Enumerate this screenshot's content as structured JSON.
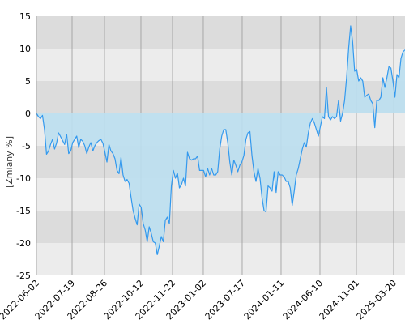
{
  "chart_data": {
    "type": "area",
    "xlabel": "",
    "ylabel": "[Zmiany %]",
    "ylim": [
      -25,
      15
    ],
    "y_ticks": [
      "15",
      "10",
      "5",
      "0",
      "-5",
      "-10",
      "-15",
      "-20",
      "-25"
    ],
    "x_ticks": [
      "2022-06-02",
      "2022-07-19",
      "2022-08-26",
      "2022-10-12",
      "2022-11-22",
      "2023-01-02",
      "2023-07-17",
      "2024-01-11",
      "2024-06-10",
      "2024-11-01",
      "2025-03-20"
    ],
    "grid": true,
    "series": [
      {
        "values": [
          0,
          -0.5,
          -0.8,
          -0.3,
          -2.5,
          -6.3,
          -5.8,
          -4.8,
          -4.0,
          -5.5,
          -4.6,
          -3.0,
          -3.6,
          -4.2,
          -4.8,
          -3.2,
          -6.2,
          -5.8,
          -4.5,
          -4.0,
          -3.5,
          -5.3,
          -4.0,
          -4.3,
          -5.0,
          -6.2,
          -5.2,
          -4.5,
          -5.8,
          -5.0,
          -4.5,
          -4.2,
          -4.0,
          -4.6,
          -6.0,
          -7.5,
          -4.8,
          -5.8,
          -6.2,
          -7.0,
          -8.8,
          -9.3,
          -6.8,
          -9.5,
          -10.5,
          -10.2,
          -10.8,
          -13.0,
          -15.0,
          -16.2,
          -17.2,
          -14.0,
          -14.5,
          -17.0,
          -18.0,
          -19.8,
          -17.5,
          -18.5,
          -19.8,
          -20.0,
          -21.8,
          -20.5,
          -19.0,
          -19.8,
          -16.5,
          -16.0,
          -17.0,
          -11.2,
          -8.8,
          -10.0,
          -9.2,
          -11.5,
          -11.0,
          -10.0,
          -11.2,
          -6.0,
          -7.0,
          -7.2,
          -7.0,
          -7.0,
          -6.6,
          -8.8,
          -8.8,
          -8.8,
          -9.8,
          -8.5,
          -9.5,
          -8.5,
          -9.5,
          -9.5,
          -9.0,
          -5.5,
          -3.5,
          -2.5,
          -2.5,
          -4.5,
          -7.5,
          -9.5,
          -7.2,
          -8.0,
          -9.0,
          -8.0,
          -7.5,
          -6.5,
          -4.0,
          -3.0,
          -2.8,
          -6.5,
          -9.0,
          -10.5,
          -8.5,
          -10.0,
          -13.0,
          -15.0,
          -15.2,
          -11.2,
          -11.5,
          -12.0,
          -9.0,
          -12.2,
          -9.0,
          -9.5,
          -9.5,
          -9.8,
          -10.5,
          -10.5,
          -11.5,
          -14.2,
          -12.0,
          -9.5,
          -8.5,
          -7.0,
          -5.5,
          -4.5,
          -5.2,
          -3.0,
          -1.5,
          -0.8,
          -1.5,
          -2.5,
          -3.5,
          -2.0,
          -0.5,
          -0.8,
          4.0,
          -0.5,
          -1.0,
          -0.5,
          -0.8,
          -0.5,
          2.0,
          -1.2,
          0.0,
          2.0,
          5.5,
          10.0,
          13.5,
          11.0,
          6.5,
          6.8,
          5.0,
          5.5,
          5.0,
          2.5,
          2.8,
          3.0,
          2.0,
          1.5,
          -2.2,
          2.0,
          2.0,
          2.5,
          5.5,
          4.0,
          5.5,
          7.2,
          7.0,
          5.0,
          2.5,
          6.0,
          5.5,
          8.5,
          9.5,
          9.8
        ]
      }
    ],
    "colors": {
      "line": "#3399ee",
      "fill": "#bbdff0",
      "band_dark": "#dcdcdc",
      "band_light": "#ececec",
      "gridline": "#999999"
    }
  }
}
